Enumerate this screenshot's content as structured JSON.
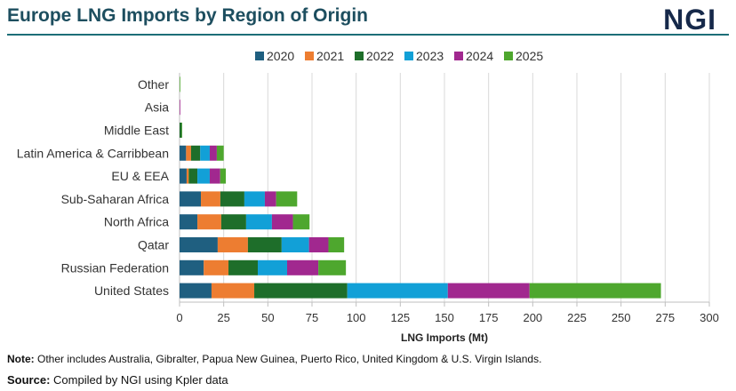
{
  "title": "Europe LNG Imports by Region of Origin",
  "logo": "NGI",
  "note_label": "Note:",
  "note": " Other includes Australia, Gibralter, Papua New Guinea, Puerto Rico, United Kingdom & U.S. Virgin Islands.",
  "source_label": "Source:",
  "source": " Compiled by NGI using Kpler data",
  "chart_data": {
    "type": "bar",
    "orientation": "horizontal",
    "stacked": true,
    "title": "Europe LNG Imports by Region of Origin",
    "xlabel": "LNG Imports (Mt)",
    "xlim": [
      0,
      300
    ],
    "xticks": [
      "0",
      "25",
      "50",
      "75",
      "100",
      "125",
      "150",
      "175",
      "200",
      "225",
      "250",
      "275",
      "300"
    ],
    "grid": "vertical",
    "legend": "top",
    "categories": [
      "Other",
      "Asia",
      "Middle East",
      "Latin America & Carribbean",
      "EU & EEA",
      "Sub-Saharan Africa",
      "North Africa",
      "Qatar",
      "Russian Federation",
      "United States"
    ],
    "series": [
      {
        "name": "2020",
        "color": "#1f5f80",
        "values": [
          0,
          0,
          0,
          3.7,
          4.0,
          12.1,
          10.1,
          21.6,
          13.7,
          18.1
        ]
      },
      {
        "name": "2021",
        "color": "#ed7d31",
        "values": [
          0,
          0,
          0,
          2.8,
          1.2,
          11.0,
          13.5,
          17.1,
          14.0,
          24.2
        ]
      },
      {
        "name": "2022",
        "color": "#1e6e2a",
        "values": [
          0,
          0,
          1.2,
          5.2,
          4.9,
          13.6,
          14.1,
          19.1,
          16.6,
          52.7
        ]
      },
      {
        "name": "2023",
        "color": "#12a0d7",
        "values": [
          0,
          0,
          0,
          5.4,
          7.0,
          11.6,
          14.6,
          15.5,
          16.6,
          56.9
        ]
      },
      {
        "name": "2024",
        "color": "#a1288f",
        "values": [
          0,
          0.4,
          0,
          4.0,
          5.9,
          6.4,
          11.9,
          11.0,
          17.7,
          46.3
        ]
      },
      {
        "name": "2025",
        "color": "#4ea72e",
        "values": [
          0.4,
          0,
          0.3,
          3.9,
          3.2,
          11.9,
          9.4,
          8.9,
          15.6,
          74.4
        ]
      }
    ]
  }
}
